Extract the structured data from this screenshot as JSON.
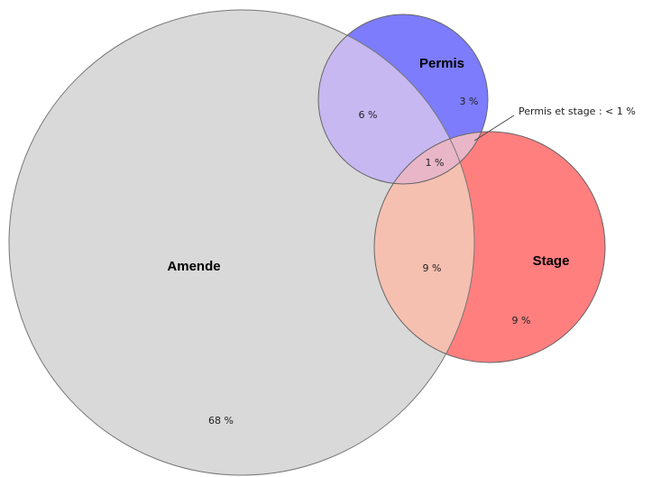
{
  "sets": [
    {
      "label": "Amende"
    },
    {
      "label": "Permis"
    },
    {
      "label": "Stage"
    }
  ],
  "regions": [
    {
      "label": "68 %"
    },
    {
      "label": "3 %"
    },
    {
      "label": "9 %"
    },
    {
      "label": "6 %"
    },
    {
      "label": "9 %"
    },
    {
      "label": "1 %"
    }
  ],
  "annotation": "Permis et stage : < 1 %"
}
